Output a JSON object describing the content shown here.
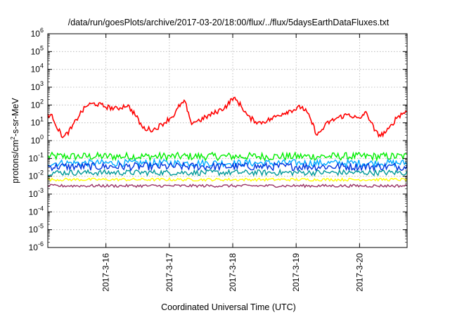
{
  "chart_data": {
    "type": "line",
    "title": "/data/run/goesPlots/archive/2017-03-20/18:00/flux/../flux/5daysEarthDataFluxes.txt",
    "xlabel": "Coordinated Universal Time (UTC)",
    "ylabel_base": "protons/cm",
    "ylabel_sup": "2",
    "ylabel_rest": "-s-sr-MeV",
    "y_scale": "log",
    "ylim": [
      1e-06,
      1000000.0
    ],
    "y_ticks": [
      {
        "exp": -6,
        "label": "10",
        "sup": "-6"
      },
      {
        "exp": -5,
        "label": "10",
        "sup": "-5"
      },
      {
        "exp": -4,
        "label": "10",
        "sup": "-4"
      },
      {
        "exp": -3,
        "label": "10",
        "sup": "-3"
      },
      {
        "exp": -2,
        "label": "10",
        "sup": "-2"
      },
      {
        "exp": -1,
        "label": "10",
        "sup": "-1"
      },
      {
        "exp": 0,
        "label": "10",
        "sup": "0"
      },
      {
        "exp": 1,
        "label": "10",
        "sup": "1"
      },
      {
        "exp": 2,
        "label": "10",
        "sup": "2"
      },
      {
        "exp": 3,
        "label": "10",
        "sup": "3"
      },
      {
        "exp": 4,
        "label": "10",
        "sup": "4"
      },
      {
        "exp": 5,
        "label": "10",
        "sup": "5"
      },
      {
        "exp": 6,
        "label": "10",
        "sup": "6"
      }
    ],
    "x_range_days": [
      "2017-03-15 02:00",
      "2017-03-20 18:00"
    ],
    "x_ticks": [
      "2017-3-16",
      "2017-3-17",
      "2017-3-18",
      "2017-3-19",
      "2017-3-20"
    ],
    "grid": true,
    "series": [
      {
        "color": "#ff0000",
        "x": [
          "2017-03-15 02:00",
          "2017-03-15 04:00",
          "2017-03-15 06:00",
          "2017-03-15 08:00",
          "2017-03-15 11:00",
          "2017-03-15 14:00",
          "2017-03-15 17:00",
          "2017-03-15 20:00",
          "2017-03-16 00:00",
          "2017-03-16 04:00",
          "2017-03-16 08:00",
          "2017-03-16 11:00",
          "2017-03-16 14:00",
          "2017-03-16 18:00",
          "2017-03-16 22:00",
          "2017-03-17 02:00",
          "2017-03-17 04:00",
          "2017-03-17 06:00",
          "2017-03-17 08:00",
          "2017-03-17 12:00",
          "2017-03-17 16:00",
          "2017-03-17 20:00",
          "2017-03-17 22:00",
          "2017-03-18 00:00",
          "2017-03-18 02:00",
          "2017-03-18 04:00",
          "2017-03-18 06:00",
          "2017-03-18 10:00",
          "2017-03-18 14:00",
          "2017-03-18 18:00",
          "2017-03-18 20:00",
          "2017-03-18 22:00",
          "2017-03-19 00:00",
          "2017-03-19 02:00",
          "2017-03-19 04:00",
          "2017-03-19 06:00",
          "2017-03-19 08:00",
          "2017-03-19 12:00",
          "2017-03-19 16:00",
          "2017-03-19 20:00",
          "2017-03-20 00:00",
          "2017-03-20 02:00",
          "2017-03-20 04:00",
          "2017-03-20 06:00",
          "2017-03-20 08:00",
          "2017-03-20 11:00",
          "2017-03-20 14:00",
          "2017-03-20 17:00",
          "2017-03-20 18:00"
        ],
        "values": [
          30,
          20,
          4,
          1.5,
          5,
          30,
          100,
          120,
          80,
          60,
          100,
          30,
          5,
          4,
          10,
          30,
          100,
          150,
          10,
          15,
          30,
          60,
          100,
          250,
          150,
          60,
          20,
          10,
          15,
          30,
          40,
          50,
          60,
          80,
          40,
          10,
          2,
          10,
          20,
          30,
          15,
          40,
          15,
          3,
          2,
          4,
          20,
          40,
          40
        ]
      },
      {
        "color": "#00ee00",
        "level": 0.13,
        "spread": 0.22
      },
      {
        "color": "#00aaff",
        "level": 0.055,
        "spread": 0.2
      },
      {
        "color": "#0033dd",
        "level": 0.035,
        "spread": 0.22
      },
      {
        "color": "#009999",
        "level": 0.016,
        "spread": 0.16
      },
      {
        "color": "#ffff00",
        "level": 0.0065,
        "spread": 0.08
      },
      {
        "color": "#993366",
        "level": 0.0029,
        "spread": 0.08
      }
    ]
  }
}
